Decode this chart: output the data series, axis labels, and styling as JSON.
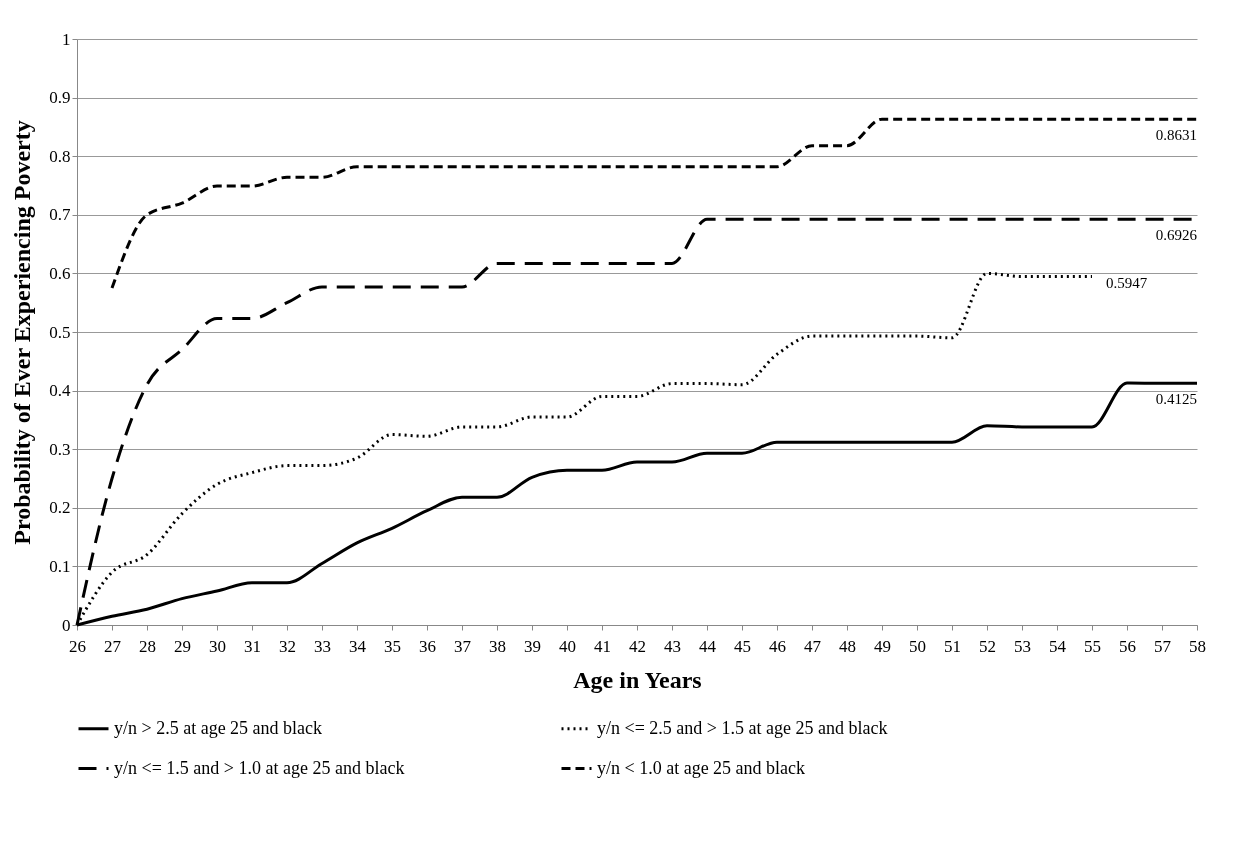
{
  "chart_data": {
    "type": "line",
    "xlabel": "Age in Years",
    "ylabel": "Probability of Ever Experiencing Poverty",
    "categories": [
      "26",
      "27",
      "28",
      "29",
      "30",
      "31",
      "32",
      "33",
      "34",
      "35",
      "36",
      "37",
      "38",
      "39",
      "40",
      "41",
      "42",
      "43",
      "44",
      "45",
      "46",
      "47",
      "48",
      "49",
      "50",
      "51",
      "52",
      "53",
      "54",
      "55",
      "56",
      "57",
      "58"
    ],
    "series": [
      {
        "name": "y/n > 2.5 at age 25 and black",
        "color": "#000000",
        "line_style": "solid",
        "values": [
          0,
          0.015,
          0.027,
          0.045,
          0.058,
          0.072,
          0.072,
          0.105,
          0.14,
          0.165,
          0.195,
          0.218,
          0.218,
          0.252,
          0.264,
          0.264,
          0.278,
          0.278,
          0.293,
          0.293,
          0.312,
          0.312,
          0.312,
          0.312,
          0.312,
          0.312,
          0.34,
          0.338,
          0.338,
          0.338,
          0.413,
          0.4125,
          0.4125
        ]
      },
      {
        "name": "y/n <= 2.5 and > 1.5 at age 25 and black",
        "color": "#000000",
        "line_style": "dotted",
        "values": [
          0,
          0.09,
          0.12,
          0.19,
          0.24,
          0.26,
          0.272,
          0.272,
          0.285,
          0.325,
          0.322,
          0.338,
          0.338,
          0.355,
          0.355,
          0.39,
          0.39,
          0.412,
          0.412,
          0.41,
          0.462,
          0.493,
          0.493,
          0.493,
          0.493,
          0.49,
          0.6,
          0.5947,
          0.5947,
          0.5947,
          null,
          null,
          null
        ]
      },
      {
        "name": "y/n <= 1.5 and > 1.0 at age 25 and black",
        "color": "#000000",
        "line_style": "dashed",
        "values": [
          0,
          0.25,
          0.41,
          0.47,
          0.523,
          0.523,
          0.55,
          0.577,
          0.577,
          0.577,
          0.577,
          0.577,
          0.617,
          0.617,
          0.617,
          0.617,
          0.617,
          0.617,
          0.6926,
          0.6926,
          0.6926,
          0.6926,
          0.6926,
          0.6926,
          0.6926,
          0.6926,
          0.6926,
          0.6926,
          0.6926,
          0.6926,
          0.6926,
          0.6926,
          0.6926
        ]
      },
      {
        "name": "y/n < 1.0 at age 25 and black",
        "color": "#000000",
        "line_style": "dashed",
        "values": [
          null,
          0.575,
          0.7,
          0.72,
          0.749,
          0.749,
          0.764,
          0.764,
          0.782,
          0.782,
          0.782,
          0.782,
          0.782,
          0.782,
          0.782,
          0.782,
          0.782,
          0.782,
          0.782,
          0.782,
          0.782,
          0.818,
          0.818,
          0.8631,
          0.8631,
          0.8631,
          0.8631,
          0.8631,
          0.8631,
          0.8631,
          0.8631,
          0.8631,
          0.8631
        ]
      }
    ],
    "annotations": [
      {
        "text": "0.8631",
        "x": "58",
        "y": 0.8631
      },
      {
        "text": "0.6926",
        "x": "58",
        "y": 0.6926
      },
      {
        "text": "0.5947",
        "x": "55",
        "y": 0.5947
      },
      {
        "text": "0.4125",
        "x": "58",
        "y": 0.4125
      }
    ],
    "ylim": [
      0,
      1
    ],
    "yticks": [
      0,
      0.1,
      0.2,
      0.3,
      0.4,
      0.5,
      0.6,
      0.7,
      0.8,
      0.9,
      1
    ],
    "grid": "y",
    "legend": "bottom",
    "marker": "none"
  }
}
